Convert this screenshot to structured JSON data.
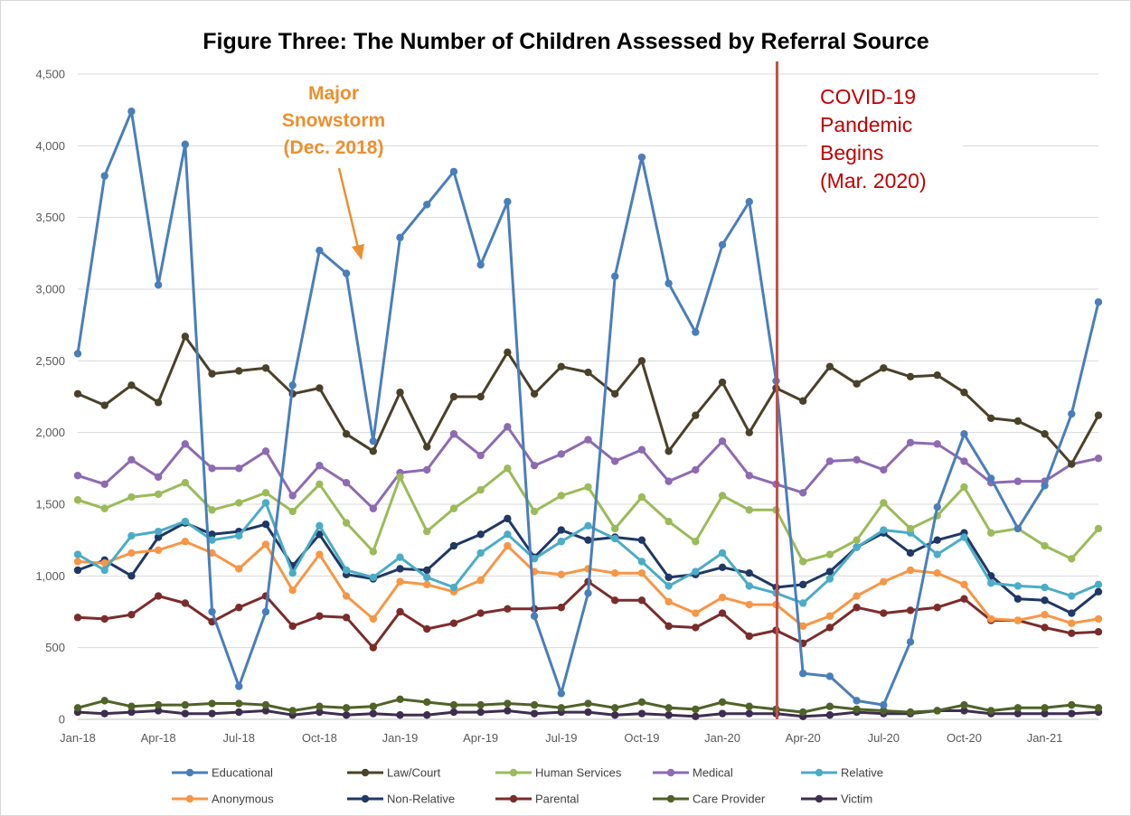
{
  "chart_data": {
    "type": "line",
    "title": "Figure Three: The Number of Children Assessed by Referral Source",
    "xlabel": "",
    "ylabel": "",
    "ylim": [
      0,
      4500
    ],
    "yticks": [
      0,
      500,
      1000,
      1500,
      2000,
      2500,
      3000,
      3500,
      4000,
      4500
    ],
    "ytick_labels": [
      "0",
      "500",
      "1,000",
      "1,500",
      "2,000",
      "2,500",
      "3,000",
      "3,500",
      "4,000",
      "4,500"
    ],
    "x": [
      "Jan-18",
      "Feb-18",
      "Mar-18",
      "Apr-18",
      "May-18",
      "Jun-18",
      "Jul-18",
      "Aug-18",
      "Sep-18",
      "Oct-18",
      "Nov-18",
      "Dec-18",
      "Jan-19",
      "Feb-19",
      "Mar-19",
      "Apr-19",
      "May-19",
      "Jun-19",
      "Jul-19",
      "Aug-19",
      "Sep-19",
      "Oct-19",
      "Nov-19",
      "Dec-19",
      "Jan-20",
      "Feb-20",
      "Mar-20",
      "Apr-20",
      "May-20",
      "Jun-20",
      "Jul-20",
      "Aug-20",
      "Sep-20",
      "Oct-20",
      "Nov-20",
      "Dec-20",
      "Jan-21",
      "Feb-21",
      "Mar-21"
    ],
    "xtick_labels": [
      "Jan-18",
      "Apr-18",
      "Jul-18",
      "Oct-18",
      "Jan-19",
      "Apr-19",
      "Jul-19",
      "Oct-19",
      "Jan-20",
      "Apr-20",
      "Jul-20",
      "Oct-20",
      "Jan-21"
    ],
    "grid": "horizontal",
    "legend_position": "bottom",
    "series": [
      {
        "name": "Educational",
        "color": "#4A7EBB",
        "values": [
          2550,
          3790,
          4240,
          3030,
          4010,
          750,
          230,
          750,
          2330,
          3270,
          3110,
          1940,
          3360,
          3590,
          3820,
          3170,
          3610,
          720,
          180,
          880,
          3090,
          3920,
          3040,
          2700,
          3310,
          3610,
          2360,
          320,
          300,
          130,
          100,
          540,
          1480,
          1990,
          1680,
          1330,
          1630,
          2130,
          2910
        ]
      },
      {
        "name": "Law/Court",
        "color": "#4A4129",
        "values": [
          2270,
          2190,
          2330,
          2210,
          2670,
          2410,
          2430,
          2450,
          2270,
          2310,
          1990,
          1870,
          2280,
          1900,
          2250,
          2250,
          2560,
          2270,
          2460,
          2420,
          2270,
          2500,
          1870,
          2120,
          2350,
          2000,
          2310,
          2220,
          2460,
          2340,
          2450,
          2390,
          2400,
          2280,
          2100,
          2080,
          1990,
          1780,
          2120
        ]
      },
      {
        "name": "Human Services",
        "color": "#9BBB59",
        "values": [
          1530,
          1470,
          1550,
          1570,
          1650,
          1460,
          1510,
          1580,
          1450,
          1640,
          1370,
          1170,
          1690,
          1310,
          1470,
          1600,
          1750,
          1450,
          1560,
          1620,
          1330,
          1550,
          1380,
          1240,
          1560,
          1460,
          1460,
          1100,
          1150,
          1250,
          1510,
          1330,
          1420,
          1620,
          1300,
          1330,
          1210,
          1120,
          1330
        ]
      },
      {
        "name": "Medical",
        "color": "#8E6AB2",
        "values": [
          1700,
          1640,
          1810,
          1690,
          1920,
          1750,
          1750,
          1870,
          1560,
          1770,
          1650,
          1470,
          1720,
          1740,
          1990,
          1840,
          2040,
          1770,
          1850,
          1950,
          1800,
          1880,
          1660,
          1740,
          1940,
          1700,
          1640,
          1580,
          1800,
          1810,
          1740,
          1930,
          1920,
          1800,
          1650,
          1660,
          1660,
          1780,
          1820
        ]
      },
      {
        "name": "Relative",
        "color": "#4BACC6",
        "values": [
          1150,
          1040,
          1280,
          1310,
          1380,
          1250,
          1280,
          1510,
          1020,
          1350,
          1040,
          990,
          1130,
          990,
          920,
          1160,
          1290,
          1120,
          1240,
          1350,
          1260,
          1100,
          930,
          1030,
          1160,
          930,
          880,
          810,
          980,
          1200,
          1320,
          1300,
          1150,
          1270,
          950,
          930,
          920,
          860,
          940
        ]
      },
      {
        "name": "Anonymous",
        "color": "#F79646",
        "values": [
          1100,
          1090,
          1160,
          1180,
          1240,
          1160,
          1050,
          1220,
          900,
          1150,
          860,
          700,
          960,
          940,
          890,
          970,
          1210,
          1030,
          1010,
          1050,
          1020,
          1020,
          820,
          740,
          850,
          800,
          800,
          650,
          720,
          860,
          960,
          1040,
          1020,
          940,
          700,
          690,
          730,
          670,
          700
        ]
      },
      {
        "name": "Non-Relative",
        "color": "#1F3864",
        "values": [
          1040,
          1110,
          1000,
          1270,
          1370,
          1290,
          1310,
          1360,
          1070,
          1290,
          1010,
          980,
          1050,
          1040,
          1210,
          1290,
          1400,
          1130,
          1320,
          1250,
          1270,
          1250,
          990,
          1010,
          1060,
          1020,
          920,
          940,
          1030,
          1200,
          1300,
          1160,
          1250,
          1300,
          1000,
          840,
          830,
          740,
          890
        ]
      },
      {
        "name": "Parental",
        "color": "#7B2C2A",
        "values": [
          710,
          700,
          730,
          860,
          810,
          680,
          780,
          860,
          650,
          720,
          710,
          500,
          750,
          630,
          670,
          740,
          770,
          770,
          780,
          960,
          830,
          830,
          650,
          640,
          740,
          580,
          620,
          530,
          640,
          780,
          740,
          760,
          780,
          840,
          690,
          690,
          640,
          600,
          610
        ]
      },
      {
        "name": "Care Provider",
        "color": "#4F6228",
        "values": [
          80,
          130,
          90,
          100,
          100,
          110,
          110,
          100,
          60,
          90,
          80,
          90,
          140,
          120,
          100,
          100,
          110,
          100,
          80,
          110,
          80,
          120,
          80,
          70,
          120,
          90,
          70,
          50,
          90,
          70,
          60,
          50,
          60,
          100,
          60,
          80,
          80,
          100,
          80
        ]
      },
      {
        "name": "Victim",
        "color": "#3F2D4F",
        "values": [
          50,
          40,
          50,
          60,
          40,
          40,
          50,
          60,
          30,
          50,
          30,
          40,
          30,
          30,
          50,
          50,
          60,
          40,
          50,
          50,
          30,
          40,
          30,
          20,
          40,
          40,
          40,
          20,
          30,
          50,
          40,
          40,
          60,
          60,
          40,
          40,
          40,
          40,
          50
        ]
      }
    ],
    "annotations": [
      {
        "lines": [
          "Major",
          "Snowstorm",
          "(Dec. 2018)"
        ],
        "color": "#ED8F2E"
      },
      {
        "lines": [
          "COVID-19",
          "Pandemic",
          "Begins",
          "(Mar. 2020)"
        ],
        "color": "#C00000"
      }
    ],
    "event_line": {
      "x": "Mar-20",
      "color": "#C0504D"
    }
  }
}
